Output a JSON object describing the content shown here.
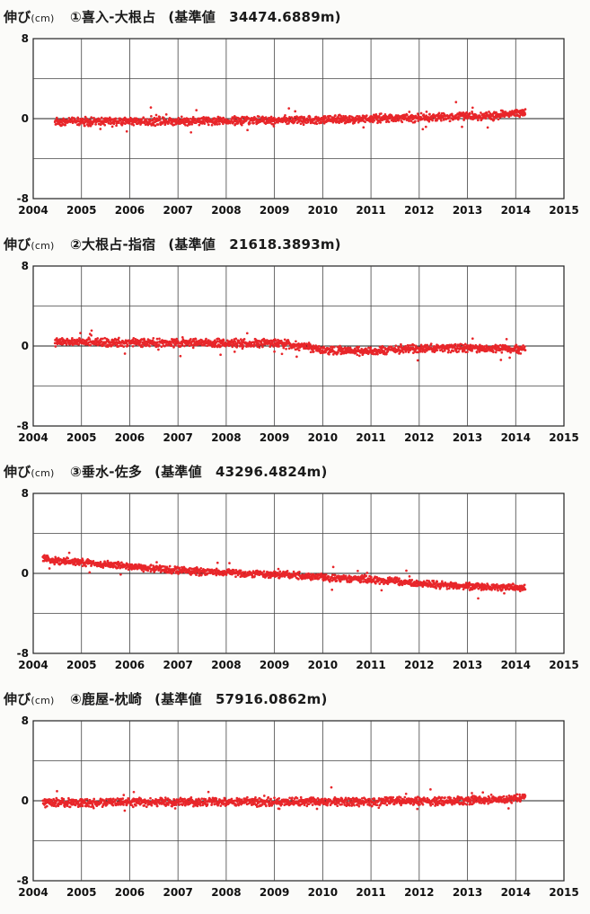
{
  "unit_label_prefix": "伸び",
  "unit_label_suffix": "(cm)",
  "colors": {
    "points": "#e8262a",
    "grid": "#444444",
    "frame": "#222222"
  },
  "chart_data": [
    {
      "type": "scatter",
      "title_number": "①",
      "station": "喜入-大根占",
      "baseline_text": "(基準値　34474.6889m)",
      "ylabel": "伸び(cm)",
      "ylim": [
        -8,
        8
      ],
      "yticks": [
        "8",
        "0",
        "-8"
      ],
      "xlim": [
        2004,
        2015
      ],
      "xticks": [
        "2004",
        "2005",
        "2006",
        "2007",
        "2008",
        "2009",
        "2010",
        "2011",
        "2012",
        "2013",
        "2014",
        "2015"
      ],
      "grid": true,
      "series": [
        {
          "x_start": 2004.45,
          "x_end": 2014.2,
          "trend": [
            [
              2004.45,
              -0.3
            ],
            [
              2008.0,
              -0.2
            ],
            [
              2010.0,
              -0.1
            ],
            [
              2012.0,
              0.1
            ],
            [
              2013.5,
              0.3
            ],
            [
              2014.2,
              0.6
            ]
          ],
          "scatter_cm": 0.35
        }
      ]
    },
    {
      "type": "scatter",
      "title_number": "②",
      "station": "大根占-指宿",
      "baseline_text": "(基準値　21618.3893m)",
      "ylabel": "伸び(cm)",
      "ylim": [
        -8,
        8
      ],
      "yticks": [
        "8",
        "0",
        "-8"
      ],
      "xlim": [
        2004,
        2015
      ],
      "xticks": [
        "2004",
        "2005",
        "2006",
        "2007",
        "2008",
        "2009",
        "2010",
        "2011",
        "2012",
        "2013",
        "2014",
        "2015"
      ],
      "grid": true,
      "series": [
        {
          "x_start": 2004.45,
          "x_end": 2014.2,
          "trend": [
            [
              2004.45,
              0.4
            ],
            [
              2007.0,
              0.3
            ],
            [
              2009.0,
              0.3
            ],
            [
              2009.6,
              0.0
            ],
            [
              2010.0,
              -0.4
            ],
            [
              2011.0,
              -0.5
            ],
            [
              2012.0,
              -0.2
            ],
            [
              2013.0,
              -0.2
            ],
            [
              2014.2,
              -0.3
            ]
          ],
          "scatter_cm": 0.35
        }
      ]
    },
    {
      "type": "scatter",
      "title_number": "③",
      "station": "垂水-佐多",
      "baseline_text": "(基準値　43296.4824m)",
      "ylabel": "伸び(cm)",
      "ylim": [
        -8,
        8
      ],
      "yticks": [
        "8",
        "0",
        "-8"
      ],
      "xlim": [
        2004,
        2015
      ],
      "xticks": [
        "2004",
        "2005",
        "2006",
        "2007",
        "2008",
        "2009",
        "2010",
        "2011",
        "2012",
        "2013",
        "2014",
        "2015"
      ],
      "grid": true,
      "series": [
        {
          "x_start": 2004.2,
          "x_end": 2014.2,
          "trend": [
            [
              2004.2,
              1.4
            ],
            [
              2005.0,
              1.1
            ],
            [
              2006.0,
              0.7
            ],
            [
              2007.0,
              0.3
            ],
            [
              2008.0,
              0.1
            ],
            [
              2009.0,
              -0.1
            ],
            [
              2010.0,
              -0.4
            ],
            [
              2011.0,
              -0.6
            ],
            [
              2012.0,
              -1.0
            ],
            [
              2013.0,
              -1.3
            ],
            [
              2014.2,
              -1.4
            ]
          ],
          "scatter_cm": 0.3
        }
      ]
    },
    {
      "type": "scatter",
      "title_number": "④",
      "station": "鹿屋-枕崎",
      "baseline_text": "(基準値　57916.0862m)",
      "ylabel": "伸び(cm)",
      "ylim": [
        -8,
        8
      ],
      "yticks": [
        "8",
        "0",
        "-8"
      ],
      "xlim": [
        2004,
        2015
      ],
      "xticks": [
        "2004",
        "2005",
        "2006",
        "2007",
        "2008",
        "2009",
        "2010",
        "2011",
        "2012",
        "2013",
        "2014",
        "2015"
      ],
      "grid": true,
      "series": [
        {
          "x_start": 2004.2,
          "x_end": 2014.2,
          "trend": [
            [
              2004.2,
              -0.2
            ],
            [
              2008.0,
              -0.1
            ],
            [
              2011.0,
              -0.1
            ],
            [
              2013.0,
              0.0
            ],
            [
              2014.2,
              0.3
            ]
          ],
          "scatter_cm": 0.35
        }
      ]
    }
  ]
}
